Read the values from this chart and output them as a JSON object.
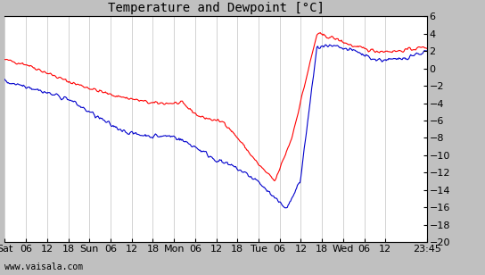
{
  "title": "Temperature and Dewpoint [°C]",
  "ylabel_right": true,
  "ylim": [
    -20,
    6
  ],
  "yticks": [
    -20,
    -18,
    -16,
    -14,
    -12,
    -10,
    -8,
    -6,
    -4,
    -2,
    0,
    2,
    4,
    6
  ],
  "bg_color": "#ffffff",
  "outer_bg": "#c0c0c0",
  "grid_color": "#c0c0c0",
  "temp_color": "#ff0000",
  "dewp_color": "#0000cc",
  "watermark": "www.vaisala.com",
  "xtick_labels": [
    "Sat",
    "06",
    "12",
    "18",
    "Sun",
    "06",
    "12",
    "18",
    "Mon",
    "06",
    "12",
    "18",
    "Tue",
    "06",
    "12",
    "18",
    "Wed",
    "06",
    "12",
    "23:45"
  ],
  "n_points": 500
}
